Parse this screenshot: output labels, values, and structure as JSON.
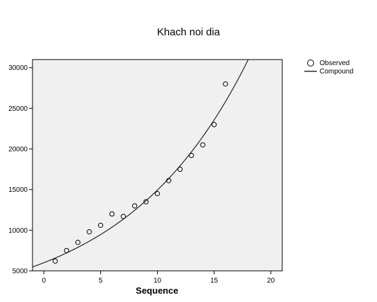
{
  "chart_data": {
    "type": "scatter",
    "title": "Khach noi dia",
    "xlabel": "Sequence",
    "ylabel": "",
    "xlim": [
      -1,
      21
    ],
    "ylim": [
      5000,
      31000
    ],
    "x_ticks": [
      0,
      5,
      10,
      15,
      20
    ],
    "y_ticks": [
      5000,
      10000,
      15000,
      20000,
      25000,
      30000
    ],
    "grid": false,
    "legend_position": "top-right",
    "plot_background": "#f0f0f0",
    "series": [
      {
        "name": "Observed",
        "marker": "open-circle",
        "x": [
          1,
          2,
          3,
          4,
          5,
          6,
          7,
          8,
          9,
          10,
          11,
          12,
          13,
          14,
          15,
          16
        ],
        "y": [
          6200,
          7500,
          8500,
          9800,
          10600,
          12000,
          11700,
          13000,
          13500,
          14500,
          16100,
          17500,
          19200,
          20500,
          23000,
          28000
        ]
      },
      {
        "name": "Compound",
        "style": "line",
        "model": "y = b0 * b1^x",
        "b0": 6000,
        "b1": 1.0955,
        "x_range": [
          -1,
          21
        ]
      }
    ]
  }
}
